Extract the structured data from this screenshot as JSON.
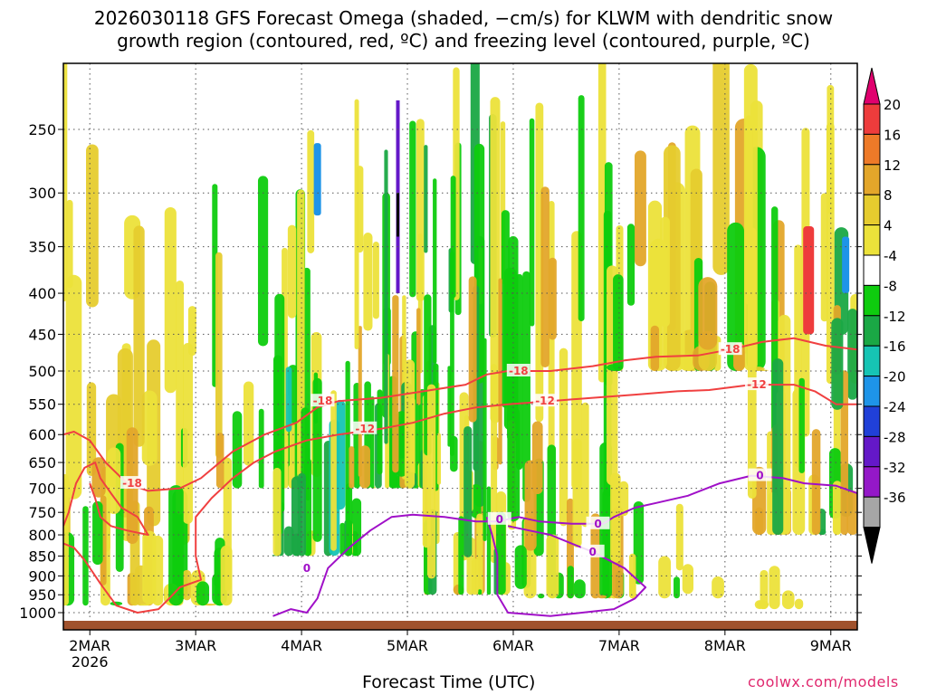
{
  "chart_data": {
    "type": "heatmap",
    "title_line1": "2026030118 GFS Forecast Omega (shaded, −cm/s) for KLWM with dendritic snow",
    "title_line2": "growth region (contoured, red, ºC) and freezing level (contoured, purple, ºC)",
    "xlabel": "Forecast Time (UTC)",
    "credit": "coolwx.com/models",
    "x_ticks": [
      "2MAR",
      "3MAR",
      "4MAR",
      "5MAR",
      "6MAR",
      "7MAR",
      "8MAR",
      "9MAR"
    ],
    "x_tick_positions_days": [
      0.25,
      1.25,
      2.25,
      3.25,
      4.25,
      5.25,
      6.25,
      7.25
    ],
    "x_year_label": "2026",
    "xlim_days": [
      0,
      7.5
    ],
    "y_ticks": [
      250,
      300,
      350,
      400,
      450,
      500,
      550,
      600,
      650,
      700,
      750,
      800,
      850,
      900,
      950,
      1000
    ],
    "ylim_hpa": [
      200,
      1030
    ],
    "colorbar_labels": [
      "20",
      "16",
      "12",
      "8",
      "4",
      "-4",
      "-8",
      "-12",
      "-16",
      "-20",
      "-24",
      "-28",
      "-32",
      "-36"
    ],
    "colorbar_colors": [
      "#e0006e",
      "#ee3c3c",
      "#ee7a28",
      "#e3a62a",
      "#e6cc2e",
      "#ece23a",
      "#ffffff",
      "#0ecc0e",
      "#1aa845",
      "#16c4b4",
      "#1e94e8",
      "#2040d8",
      "#6418c8",
      "#9418c8",
      "#a6a6a6",
      "#000000"
    ],
    "contours": {
      "red_labels": [
        "-18",
        "-18",
        "-18",
        "-18",
        "-12",
        "-12",
        "-12"
      ],
      "purple_labels": [
        "0",
        "0",
        "0",
        "0",
        "0"
      ]
    }
  }
}
